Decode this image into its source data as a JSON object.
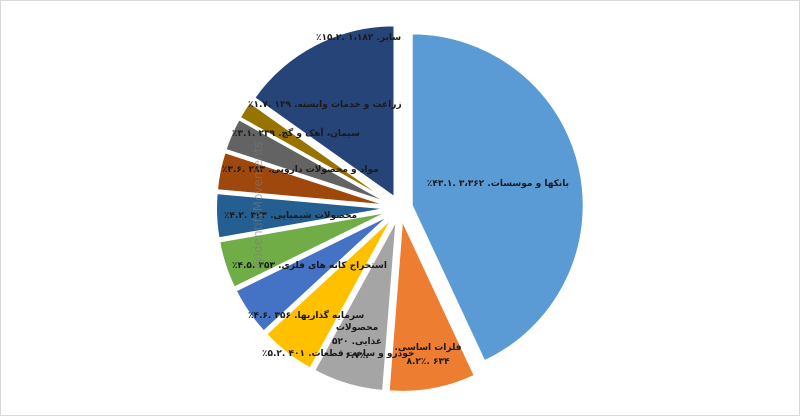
{
  "watermark": "@IdentifyMovements",
  "chart_data": {
    "type": "pie",
    "title": "",
    "start_angle_deg": 0,
    "direction": "clockwise",
    "exploded": true,
    "slices": [
      {
        "label": "بانکها و موسسات. ۳،۳۶۲ .۴۳.۱٪",
        "value": 43.1,
        "color": "#5b9bd5"
      },
      {
        "label": "فلزات اساسی. ۶۳۴ .۸.۲٪",
        "value": 8.2,
        "color": "#ed7d31"
      },
      {
        "label": "محصولات غذایی. ۵۲۰ .۶.۷٪",
        "value": 6.7,
        "color": "#a5a5a5"
      },
      {
        "label": "خودرو و ساخت قطعات. ۴۰۱ .۵.۲٪",
        "value": 5.2,
        "color": "#ffc000"
      },
      {
        "label": "سرمایه گذاریها. ۳۵۶ .۴.۶٪",
        "value": 4.6,
        "color": "#4472c4"
      },
      {
        "label": "استخراج کانه های فلزی. ۳۵۳ .۴.۵٪",
        "value": 4.5,
        "color": "#70ad47"
      },
      {
        "label": "محصولات شیمیایی. ۳۲۳ .۴.۲٪",
        "value": 4.2,
        "color": "#255e91"
      },
      {
        "label": "مواد و محصولات دارویی. ۲۸۳ .۳.۶٪",
        "value": 3.6,
        "color": "#9e480e"
      },
      {
        "label": "سیمان، آهک و گچ. ۲۳۹ .۳.۱٪",
        "value": 3.1,
        "color": "#636363"
      },
      {
        "label": "زراعت و خدمات وابسته. ۱۳۹ .۱.۷٪",
        "value": 1.7,
        "color": "#997300"
      },
      {
        "label": "سایر. ۱،۱۸۲ .۱۵.۲٪",
        "value": 15.2,
        "color": "#264478"
      }
    ]
  }
}
